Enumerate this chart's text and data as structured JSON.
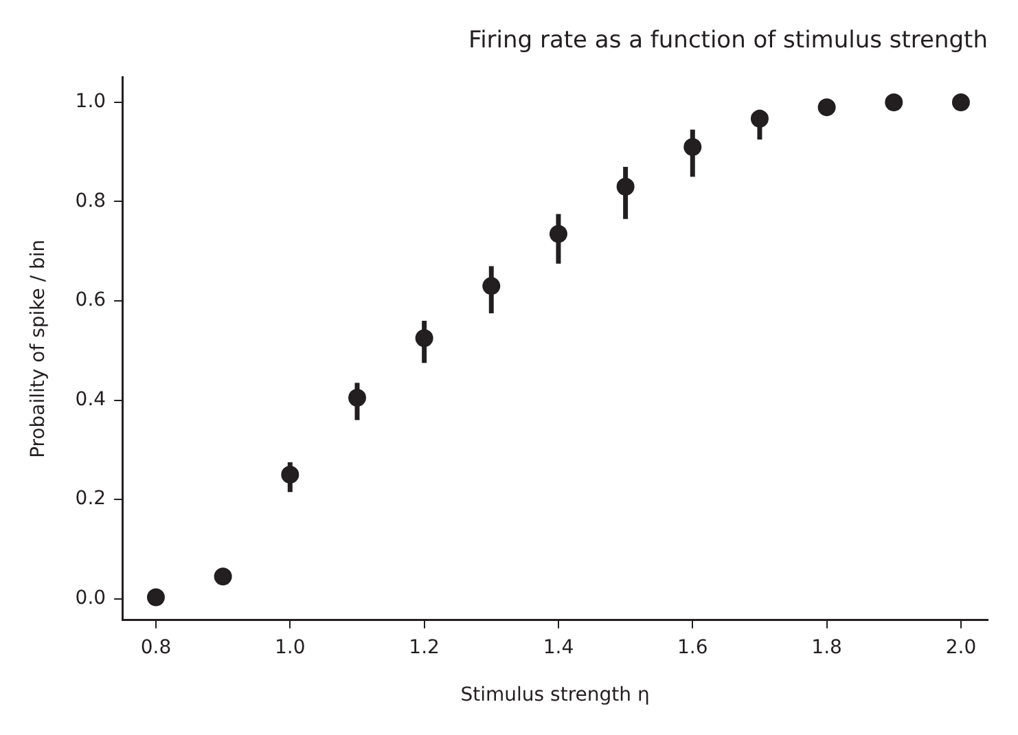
{
  "chart_data": {
    "type": "scatter",
    "title": "Firing rate as a function of stimulus strength",
    "xlabel": "Stimulus strength η",
    "ylabel": "Probaility of spike / bin",
    "x": [
      0.8,
      0.9,
      1.0,
      1.1,
      1.2,
      1.3,
      1.4,
      1.5,
      1.6,
      1.7,
      1.8,
      1.9,
      2.0
    ],
    "values": [
      0.003,
      0.045,
      0.25,
      0.405,
      0.525,
      0.63,
      0.735,
      0.83,
      0.91,
      0.967,
      0.99,
      1.0,
      1.0
    ],
    "errors": [
      null,
      null,
      [
        0.215,
        0.275
      ],
      [
        0.36,
        0.435
      ],
      [
        0.475,
        0.56
      ],
      [
        0.575,
        0.67
      ],
      [
        0.675,
        0.775
      ],
      [
        0.765,
        0.87
      ],
      [
        0.85,
        0.945
      ],
      [
        0.925,
        0.985
      ],
      null,
      null,
      null
    ],
    "color": "#231f20",
    "marker": "circle",
    "grid": false,
    "legend": false,
    "xlim": [
      0.75,
      2.04
    ],
    "xticks": [
      {
        "value": 0.8,
        "label": "0.8"
      },
      {
        "value": 1.0,
        "label": "1.0"
      },
      {
        "value": 1.2,
        "label": "1.2"
      },
      {
        "value": 1.4,
        "label": "1.4"
      },
      {
        "value": 1.6,
        "label": "1.6"
      },
      {
        "value": 1.8,
        "label": "1.8"
      },
      {
        "value": 2.0,
        "label": "2.0"
      }
    ],
    "ylim": [
      -0.043,
      1.05
    ],
    "yticks": [
      {
        "value": 0,
        "label": "0.0"
      },
      {
        "value": 0.2,
        "label": "0.2"
      },
      {
        "value": 0.4,
        "label": "0.4"
      },
      {
        "value": 0.6,
        "label": "0.6"
      },
      {
        "value": 0.8,
        "label": "0.8"
      },
      {
        "value": 1.0,
        "label": "1.0"
      }
    ]
  }
}
